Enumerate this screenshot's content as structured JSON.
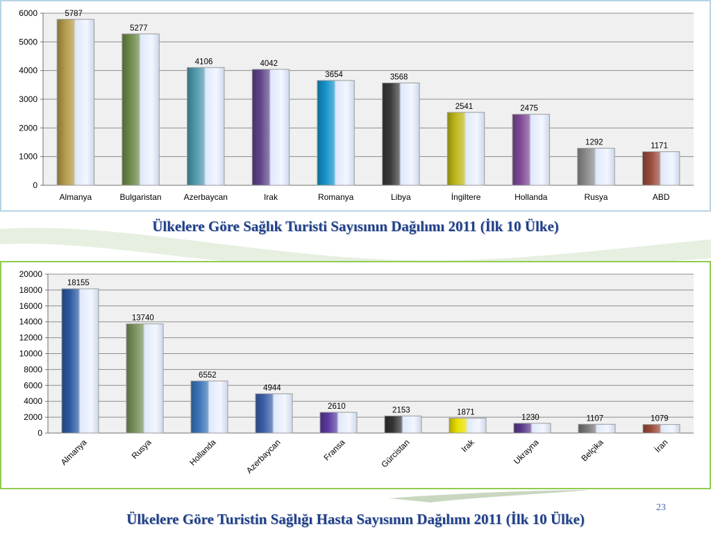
{
  "slide": {
    "page_number": "23"
  },
  "colors": {
    "plot_bg": "#f0f0f0",
    "grid": "#8c8c8c",
    "top_frame": "#b7d3e6",
    "bottom_frame": "#8fcc4e",
    "caption": "#1f3f88"
  },
  "chart_data": [
    {
      "type": "bar",
      "title": "Ülkelere Göre Sağlık Turisti Sayısının Dağılımı 2011 (İlk 10 Ülke)",
      "xlabel": "",
      "ylabel": "",
      "ylim": [
        0,
        6000
      ],
      "yticks": [
        "0",
        "1000",
        "2000",
        "3000",
        "4000",
        "5000",
        "6000"
      ],
      "grid": true,
      "tick_rotation": 0,
      "categories": [
        "Almanya",
        "Bulgaristan",
        "Azerbaycan",
        "Irak",
        "Romanya",
        "Libya",
        "İngiltere",
        "Hollanda",
        "Rusya",
        "ABD"
      ],
      "values": [
        5787,
        5277,
        4106,
        4042,
        3654,
        3568,
        2541,
        2475,
        1292,
        1171
      ],
      "data_labels": [
        "5787",
        "5277",
        "4106",
        "4042",
        "3654",
        "3568",
        "2541",
        "2475",
        "1292",
        "1171"
      ],
      "bar_colors": [
        "#b39a4a",
        "#6f8a4a",
        "#4f98ad",
        "#5e4489",
        "#1492c8",
        "#3a3a3a",
        "#bdb81a",
        "#7f4a96",
        "#8a8a8a",
        "#9a4c3c"
      ]
    },
    {
      "type": "bar",
      "title": "Ülkelere Göre Turistin Sağlığı Hasta Sayısının Dağılımı 2011 (İlk 10 Ülke)",
      "xlabel": "",
      "ylabel": "",
      "ylim": [
        0,
        20000
      ],
      "yticks": [
        "0",
        "2000",
        "4000",
        "6000",
        "8000",
        "10000",
        "12000",
        "14000",
        "16000",
        "18000",
        "20000"
      ],
      "grid": true,
      "tick_rotation": -45,
      "categories": [
        "Almanya",
        "Rusya",
        "Hollanda",
        "Azerbaycan",
        "Fransa",
        "Gürcistan",
        "Irak",
        "Ukrayna",
        "Belçika",
        "İran"
      ],
      "values": [
        18155,
        13740,
        6552,
        4944,
        2610,
        2153,
        1871,
        1230,
        1107,
        1079
      ],
      "data_labels": [
        "18155",
        "13740",
        "6552",
        "4944",
        "2610",
        "2153",
        "1871",
        "1230",
        "1107",
        "1079"
      ],
      "bar_colors": [
        "#2c5aa0",
        "#78905a",
        "#3a74b8",
        "#3a5fa8",
        "#5a3aa0",
        "#333333",
        "#e8e000",
        "#5a3a8c",
        "#777777",
        "#9a4a3a"
      ]
    }
  ]
}
